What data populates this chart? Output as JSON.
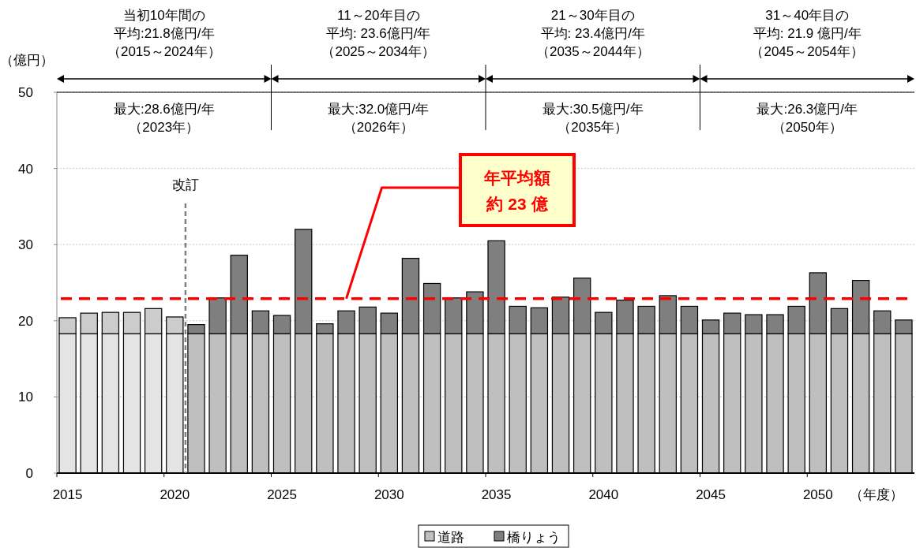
{
  "chart_data": {
    "type": "bar",
    "stacked": true,
    "x": [
      2015,
      2016,
      2017,
      2018,
      2019,
      2020,
      2021,
      2022,
      2023,
      2024,
      2025,
      2026,
      2027,
      2028,
      2029,
      2030,
      2031,
      2032,
      2033,
      2034,
      2035,
      2036,
      2037,
      2038,
      2039,
      2040,
      2041,
      2042,
      2043,
      2044,
      2045,
      2046,
      2047,
      2048,
      2049,
      2050,
      2051,
      2052,
      2053,
      2054
    ],
    "xlim": [
      2014.5,
      2054.5
    ],
    "xticks": [
      2015,
      2020,
      2025,
      2030,
      2035,
      2040,
      2045,
      2050
    ],
    "ylim": [
      0,
      50
    ],
    "yticks": [
      0,
      10,
      20,
      30,
      40,
      50
    ],
    "xlabel": "（年度）",
    "ylabel": "（億円）",
    "series": [
      {
        "name": "道路",
        "color": "#bfbfbf",
        "colors": [
          "#e4e4e4",
          "#e4e4e4",
          "#e4e4e4",
          "#e4e4e4",
          "#e4e4e4",
          "#e4e4e4",
          "#bfbfbf",
          "#bfbfbf",
          "#bfbfbf",
          "#bfbfbf",
          "#bfbfbf",
          "#bfbfbf",
          "#bfbfbf",
          "#bfbfbf",
          "#bfbfbf",
          "#bfbfbf",
          "#bfbfbf",
          "#bfbfbf",
          "#bfbfbf",
          "#bfbfbf",
          "#bfbfbf",
          "#bfbfbf",
          "#bfbfbf",
          "#bfbfbf",
          "#bfbfbf",
          "#bfbfbf",
          "#bfbfbf",
          "#bfbfbf",
          "#bfbfbf",
          "#bfbfbf",
          "#bfbfbf",
          "#bfbfbf",
          "#bfbfbf",
          "#bfbfbf",
          "#bfbfbf",
          "#bfbfbf",
          "#bfbfbf",
          "#bfbfbf",
          "#bfbfbf",
          "#bfbfbf"
        ],
        "values": [
          18.3,
          18.3,
          18.3,
          18.3,
          18.3,
          18.3,
          18.3,
          18.3,
          18.3,
          18.3,
          18.3,
          18.3,
          18.3,
          18.3,
          18.3,
          18.3,
          18.3,
          18.3,
          18.3,
          18.3,
          18.3,
          18.3,
          18.3,
          18.3,
          18.3,
          18.3,
          18.3,
          18.3,
          18.3,
          18.3,
          18.3,
          18.3,
          18.3,
          18.3,
          18.3,
          18.3,
          18.3,
          18.3,
          18.3,
          18.3
        ]
      },
      {
        "name": "橋りょう",
        "color": "#7f7f7f",
        "colors": [
          "#cccccc",
          "#cccccc",
          "#cccccc",
          "#cccccc",
          "#cccccc",
          "#cccccc",
          "#7f7f7f",
          "#7f7f7f",
          "#7f7f7f",
          "#7f7f7f",
          "#7f7f7f",
          "#7f7f7f",
          "#7f7f7f",
          "#7f7f7f",
          "#7f7f7f",
          "#7f7f7f",
          "#7f7f7f",
          "#7f7f7f",
          "#7f7f7f",
          "#7f7f7f",
          "#7f7f7f",
          "#7f7f7f",
          "#7f7f7f",
          "#7f7f7f",
          "#7f7f7f",
          "#7f7f7f",
          "#7f7f7f",
          "#7f7f7f",
          "#7f7f7f",
          "#7f7f7f",
          "#7f7f7f",
          "#7f7f7f",
          "#7f7f7f",
          "#7f7f7f",
          "#7f7f7f",
          "#7f7f7f",
          "#7f7f7f",
          "#7f7f7f",
          "#7f7f7f",
          "#7f7f7f"
        ],
        "values": [
          2.1,
          2.7,
          2.8,
          2.8,
          3.3,
          2.2,
          1.2,
          4.7,
          10.3,
          3.0,
          2.4,
          13.7,
          1.3,
          3.0,
          3.5,
          2.7,
          9.9,
          6.6,
          4.7,
          5.5,
          12.2,
          3.6,
          3.4,
          4.8,
          7.3,
          2.8,
          4.4,
          3.6,
          5.0,
          3.6,
          1.8,
          2.7,
          2.5,
          2.5,
          3.6,
          8.0,
          3.3,
          7.0,
          3.0,
          1.8
        ]
      }
    ],
    "ref_lines": [
      {
        "axis": "y",
        "value": 22.9,
        "label": "年平均額約 23 億",
        "color": "#ff0000",
        "line_style": "dashed"
      },
      {
        "axis": "x",
        "value": 2020.5,
        "label": "改訂",
        "color": "#7f7f7f",
        "line_style": "dashed"
      }
    ],
    "annotations": [
      "当初10年間の",
      "平均:21.8億円/年",
      "（2015～2024年）",
      "11～20年目の",
      "平均: 23.6億円/年",
      "（2025～2034年）",
      "21～30年目の",
      "平均: 23.4億円/年",
      "（2035～2044年）",
      "31～40年目の",
      "平均: 21.9 億円/年",
      "（2045～2054年）",
      "最大:28.6億円/年",
      "（2023年）",
      "最大:32.0億円/年",
      "（2026年）",
      "最大:30.5億円/年",
      "（2035年）",
      "最大:26.3億円/年",
      "（2050年）"
    ],
    "grid": "y",
    "legend": "bottom"
  }
}
